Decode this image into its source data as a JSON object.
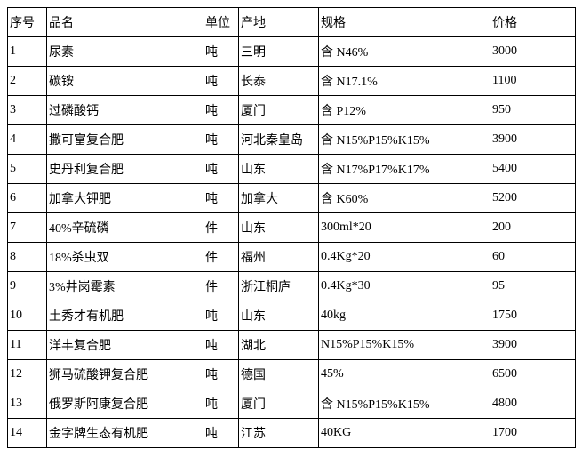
{
  "table": {
    "col_widths": [
      "44px",
      "176px",
      "40px",
      "90px",
      "193px",
      "96px"
    ],
    "columns": [
      "序号",
      "品名",
      "单位",
      "产地",
      "规格",
      "价格"
    ],
    "rows": [
      [
        "1",
        "尿素",
        "吨",
        "三明",
        "含 N46%",
        "3000"
      ],
      [
        "2",
        "碳铵",
        "吨",
        "长泰",
        "含 N17.1%",
        "1100"
      ],
      [
        "3",
        "过磷酸钙",
        "吨",
        "厦门",
        "含 P12%",
        "950"
      ],
      [
        "4",
        "撒可富复合肥",
        "吨",
        "河北秦皇岛",
        "含 N15%P15%K15%",
        "3900"
      ],
      [
        "5",
        "史丹利复合肥",
        "吨",
        "山东",
        "含 N17%P17%K17%",
        "5400"
      ],
      [
        "6",
        "加拿大钾肥",
        "吨",
        "加拿大",
        "含 K60%",
        "5200"
      ],
      [
        "7",
        "40%辛硫磷",
        "件",
        "山东",
        "300ml*20",
        "200"
      ],
      [
        "8",
        "18%杀虫双",
        "件",
        "福州",
        "0.4Kg*20",
        "60"
      ],
      [
        "9",
        "3%井岗霉素",
        "件",
        "浙江桐庐",
        "0.4Kg*30",
        "95"
      ],
      [
        "10",
        "土秀才有机肥",
        "吨",
        "山东",
        "40kg",
        "1750"
      ],
      [
        "11",
        "洋丰复合肥",
        "吨",
        "湖北",
        "N15%P15%K15%",
        "3900"
      ],
      [
        "12",
        "狮马硫酸钾复合肥",
        "吨",
        "德国",
        "45%",
        "6500"
      ],
      [
        "13",
        "俄罗斯阿康复合肥",
        "吨",
        "厦门",
        "含 N15%P15%K15%",
        "4800"
      ],
      [
        "14",
        "金字牌生态有机肥",
        "吨",
        "江苏",
        "40KG",
        "1700"
      ]
    ]
  }
}
